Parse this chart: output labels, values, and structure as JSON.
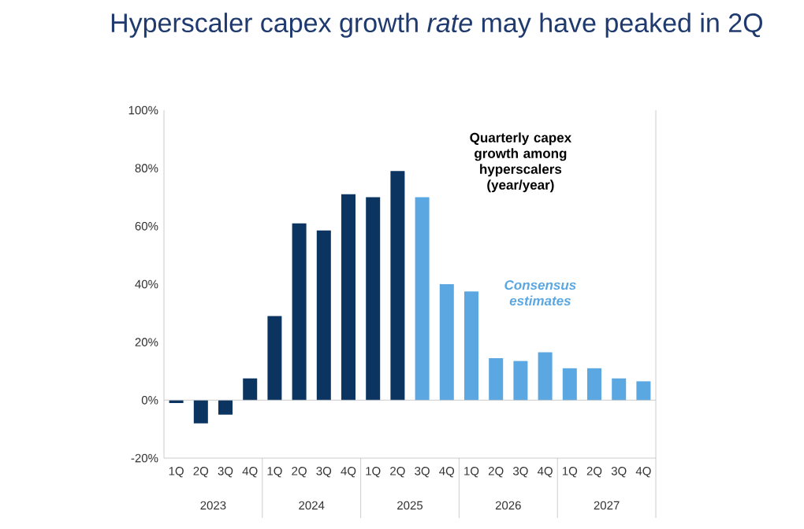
{
  "chart_data": {
    "type": "bar",
    "title": "Hyperscaler capex growth *rate* may have peaked in 2Q",
    "categories": [
      "1Q",
      "2Q",
      "3Q",
      "4Q",
      "1Q",
      "2Q",
      "3Q",
      "4Q",
      "1Q",
      "2Q",
      "3Q",
      "4Q",
      "1Q",
      "2Q",
      "3Q",
      "4Q",
      "1Q",
      "2Q",
      "3Q",
      "4Q"
    ],
    "values": [
      -1,
      -8,
      -5,
      7.5,
      29,
      61,
      58.5,
      71,
      70,
      79,
      70,
      40,
      37.5,
      14.5,
      13.5,
      16.5,
      11,
      11,
      7.5,
      6.5
    ],
    "colors": [
      "#0b3560",
      "#0b3560",
      "#0b3560",
      "#0b3560",
      "#0b3560",
      "#0b3560",
      "#0b3560",
      "#0b3560",
      "#0b3560",
      "#0b3560",
      "#5aa7e2",
      "#5aa7e2",
      "#5aa7e2",
      "#5aa7e2",
      "#5aa7e2",
      "#5aa7e2",
      "#5aa7e2",
      "#5aa7e2",
      "#5aa7e2",
      "#5aa7e2"
    ],
    "ylim": [
      -20,
      100
    ],
    "yticks": [
      {
        "value": -20,
        "label": "-20%"
      },
      {
        "value": 0,
        "label": "0%"
      },
      {
        "value": 20,
        "label": "20%"
      },
      {
        "value": 40,
        "label": "40%"
      },
      {
        "value": 60,
        "label": "60%"
      },
      {
        "value": 80,
        "label": "80%"
      },
      {
        "value": 100,
        "label": "100%"
      }
    ],
    "annotations": [
      "Quarterly capex growth among hyperscalers (year/year)",
      "Consensus estimates",
      "2023",
      "2024",
      "2025",
      "2026",
      "2027"
    ],
    "ref_lines": [
      {
        "axis": "y",
        "value": 0,
        "color": "#bfbfbf"
      }
    ]
  }
}
